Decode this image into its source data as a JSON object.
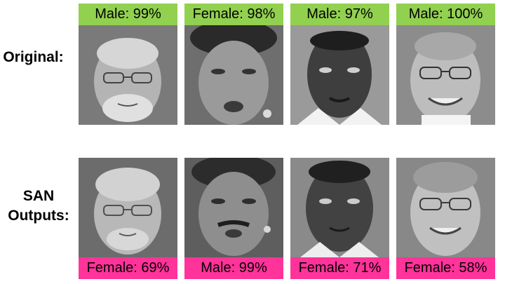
{
  "rows": [
    {
      "label_lines": [
        "Original:"
      ],
      "tag_color": "#92d050",
      "cells": [
        {
          "label": "Male: 99%",
          "face": "face-elderly-man-glasses-beard"
        },
        {
          "label": "Female: 98%",
          "face": "face-woman-earrings"
        },
        {
          "label": "Male: 97%",
          "face": "face-young-man-goatee"
        },
        {
          "label": "Male: 100%",
          "face": "face-smiling-man-glasses"
        }
      ]
    },
    {
      "label_lines": [
        "SAN",
        "Outputs:"
      ],
      "tag_color": "#ff3399",
      "cells": [
        {
          "label": "Female: 69%",
          "face": "face-transformed-elderly-glasses"
        },
        {
          "label": "Male: 99%",
          "face": "face-transformed-mustache-man"
        },
        {
          "label": "Female: 71%",
          "face": "face-transformed-young-person"
        },
        {
          "label": "Female: 58%",
          "face": "face-transformed-smiling-glasses"
        }
      ]
    }
  ]
}
